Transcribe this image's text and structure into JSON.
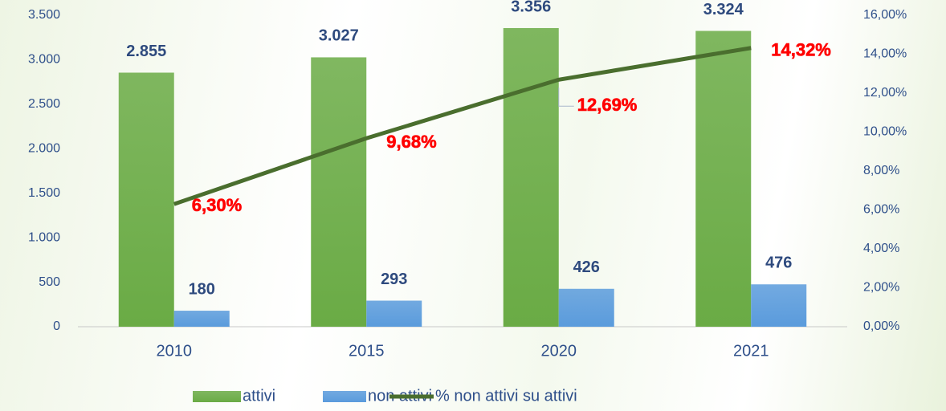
{
  "chart_data": {
    "type": "bar",
    "categories": [
      "2010",
      "2015",
      "2020",
      "2021"
    ],
    "series": [
      {
        "name": "attivi",
        "type": "bar",
        "color": "#6aab45",
        "values": [
          2855,
          3027,
          3356,
          3324
        ],
        "value_labels": [
          "2.855",
          "3.027",
          "3.356",
          "3.324"
        ]
      },
      {
        "name": "non attivi",
        "type": "bar",
        "color": "#5a9bdc",
        "values": [
          180,
          293,
          426,
          476
        ]
      },
      {
        "name": "% non attivi su attivi",
        "type": "line",
        "axis": "y2",
        "color": "#4a6e2e",
        "values": [
          6.3,
          9.68,
          12.69,
          14.32
        ],
        "value_labels": [
          "6,30%",
          "9,68%",
          "12,69%",
          "14,32%"
        ]
      }
    ],
    "ylim": [
      0,
      3500
    ],
    "yticks": [
      0,
      500,
      {
        "value": 1000,
        "label": "1.000"
      },
      {
        "value": 1500,
        "label": "1.500"
      },
      {
        "value": 2000,
        "label": "2.000"
      },
      {
        "value": 2500,
        "label": "2.500"
      },
      {
        "value": 3000,
        "label": "3.000"
      },
      {
        "value": 3500,
        "label": "3.500"
      }
    ],
    "y2lim": [
      0,
      16
    ],
    "y2ticks": [
      {
        "value": 0,
        "label": "0,00%"
      },
      {
        "value": 2,
        "label": "2,00%"
      },
      {
        "value": 4,
        "label": "4,00%"
      },
      {
        "value": 6,
        "label": "6,00%"
      },
      {
        "value": 8,
        "label": "8,00%"
      },
      {
        "value": 10,
        "label": "10,00%"
      },
      {
        "value": 12,
        "label": "12,00%"
      },
      {
        "value": 14,
        "label": "14,00%"
      },
      {
        "value": 16,
        "label": "16,00%"
      }
    ],
    "grid": false,
    "legend": "bottom"
  }
}
